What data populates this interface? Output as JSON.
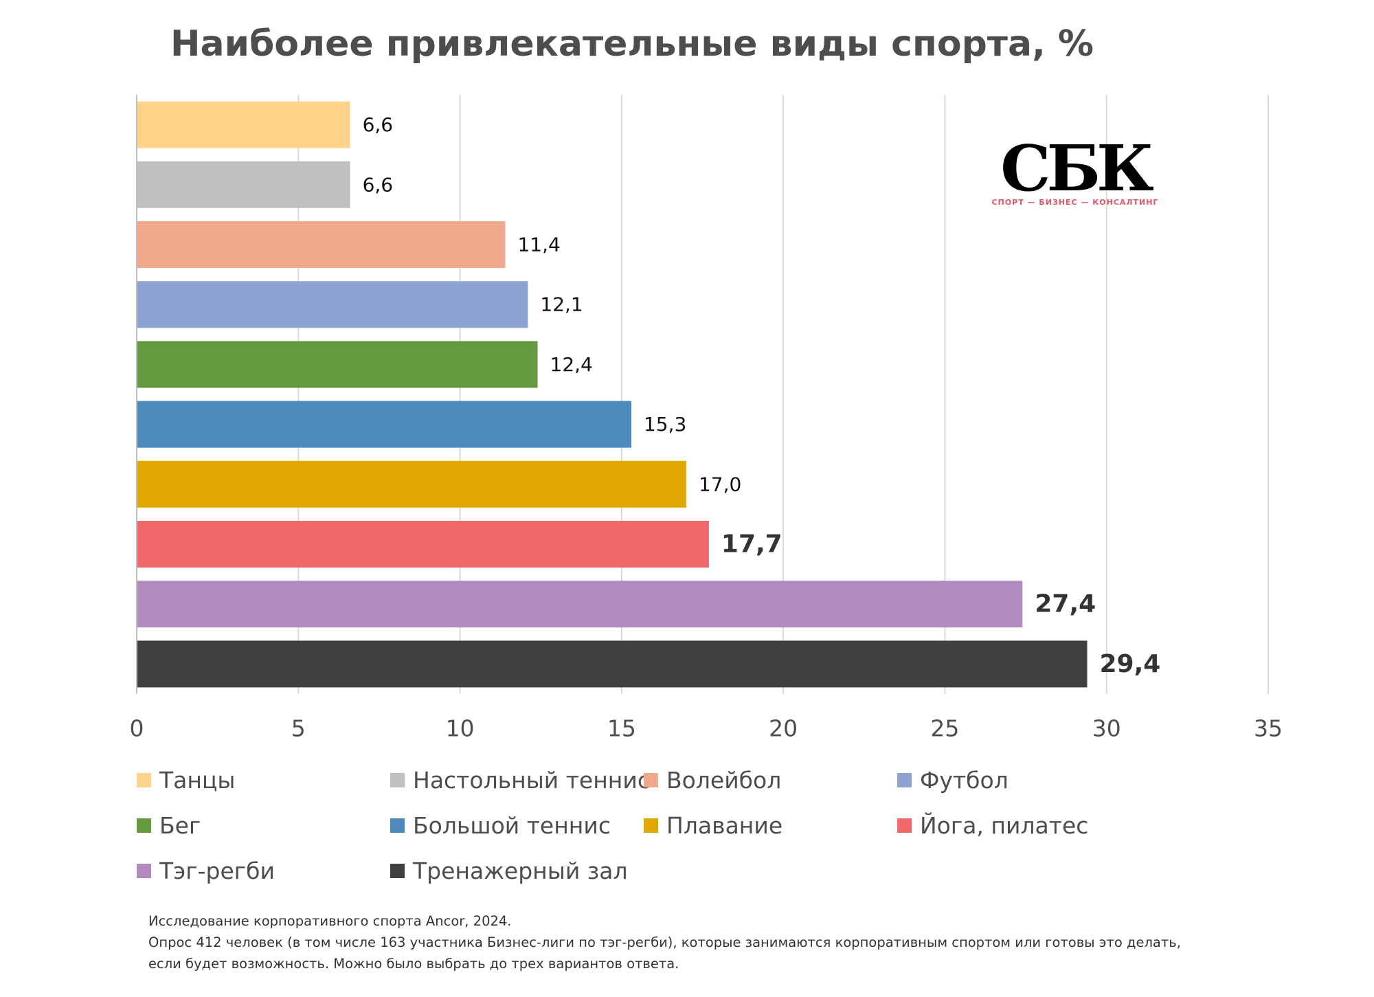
{
  "chart_data": {
    "type": "bar",
    "orientation": "horizontal",
    "title": "Наиболее привлекательные виды спорта, %",
    "categories": [
      "Танцы",
      "Настольный теннис",
      "Волейбол",
      "Футбол",
      "Бег",
      "Большой теннис",
      "Плавание",
      "Йога, пилатес",
      "Тэг-регби",
      "Тренажерный зал"
    ],
    "values": [
      6.6,
      6.6,
      11.4,
      12.1,
      12.4,
      15.3,
      17.0,
      17.7,
      27.4,
      29.4
    ],
    "value_labels": [
      "6,6",
      "6,6",
      "11,4",
      "12,1",
      "12,4",
      "15,3",
      "17,0",
      "17,7",
      "27,4",
      "29,4"
    ],
    "value_label_bold": [
      false,
      false,
      false,
      false,
      false,
      false,
      false,
      true,
      true,
      true
    ],
    "colors": [
      "#ffd48a",
      "#c0c0c0",
      "#f0a98b",
      "#8fa3d3",
      "#639a3e",
      "#4e89bd",
      "#e0a800",
      "#f06869",
      "#b28abf",
      "#404040"
    ],
    "xlim": [
      0,
      35
    ],
    "xticks": [
      0,
      5,
      10,
      15,
      20,
      25,
      30,
      35
    ],
    "xtick_labels": [
      "0",
      "5",
      "10",
      "15",
      "20",
      "25",
      "30",
      "35"
    ],
    "xlabel": "",
    "ylabel": "",
    "grid": "vertical",
    "legend_position": "bottom"
  },
  "logo": {
    "text": "СБК",
    "tagline": "СПОРТ — БИЗНЕС — КОНСАЛТИНГ"
  },
  "footnote": {
    "line1": "Исследование корпоративного спорта Ancor, 2024.",
    "line2": "Опрос 412 человек (в том числе 163 участника Бизнес-лиги по тэг-регби), которые занимаются корпоративным спортом или готовы это делать,",
    "line3": "если будет возможность. Можно было выбрать до трех вариантов ответа."
  }
}
